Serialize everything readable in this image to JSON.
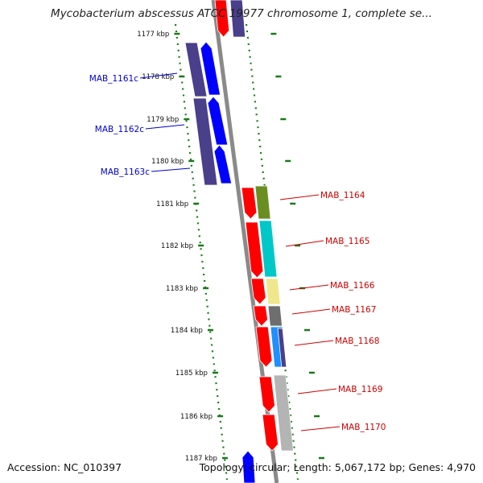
{
  "title": "Mycobacterium abscessus ATCC 19977 chromosome 1, complete se...",
  "footer": {
    "accession": "Accession: NC_010397",
    "summary": "Topology: circular; Length: 5,067,172 bp; Genes: 4,970"
  },
  "colors": {
    "backbone": "#8a8a8a",
    "tick": "#1a7a1a",
    "left_label": "#0000cc",
    "right_label": "#cc0000",
    "cds_forward_left": "#0000ff",
    "cds_reverse_left": "#4a3f8a",
    "cds_right": "#ff0000"
  },
  "ticks": [
    "1177 kbp",
    "1178 kbp",
    "1179 kbp",
    "1180 kbp",
    "1181 kbp",
    "1182 kbp",
    "1183 kbp",
    "1184 kbp",
    "1185 kbp",
    "1186 kbp",
    "1187 kbp"
  ],
  "left_genes": [
    {
      "label": "MAB_1161c"
    },
    {
      "label": "MAB_1162c"
    },
    {
      "label": "MAB_1163c"
    }
  ],
  "right_genes": [
    {
      "label": "MAB_1164",
      "color": "#6b8e23"
    },
    {
      "label": "MAB_1165",
      "color": "#00c8c8"
    },
    {
      "label": "MAB_1166",
      "color": "#f0e68c"
    },
    {
      "label": "MAB_1167",
      "color": "#6e6e6e"
    },
    {
      "label": "MAB_1168",
      "color": "#1e90ff",
      "color2": "#4a3f8a"
    },
    {
      "label": "MAB_1169",
      "color": "#b4b4b4"
    },
    {
      "label": "MAB_1170",
      "color": "#b4b4b4"
    }
  ]
}
